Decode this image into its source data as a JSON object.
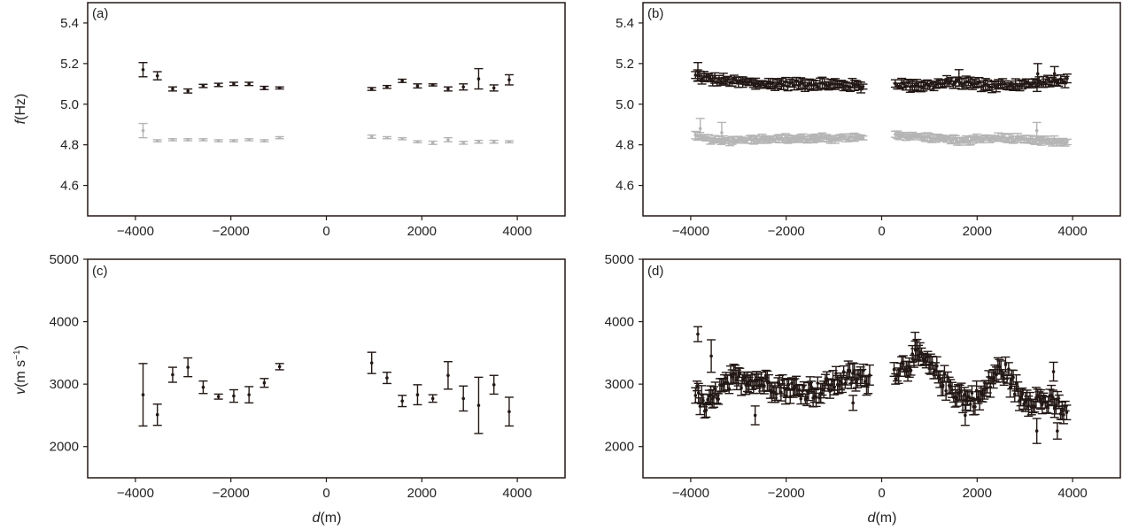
{
  "chart_data": [
    {
      "panel": "(a)",
      "type": "scatter",
      "ylabel": {
        "symbol": "f",
        "unit": "(Hz)"
      },
      "xlabel": "",
      "xlim": [
        -5000,
        5000
      ],
      "ylim": [
        4.45,
        5.5
      ],
      "xticks": [
        -4000,
        -2000,
        0,
        2000,
        4000
      ],
      "xtick_labels": [
        "−4000",
        "−2000",
        "0",
        "2000",
        "4000"
      ],
      "yticks": [
        4.6,
        4.8,
        5.0,
        5.2,
        5.4
      ],
      "ytick_labels": [
        "4.6",
        "4.8",
        "5.0",
        "5.2",
        "5.4"
      ],
      "error_bars": true,
      "series": [
        {
          "color": "#231815",
          "points": [
            {
              "x": -3840,
              "y": 5.17,
              "err": 0.035
            },
            {
              "x": -3540,
              "y": 5.14,
              "err": 0.02
            },
            {
              "x": -3220,
              "y": 5.075,
              "err": 0.01
            },
            {
              "x": -2900,
              "y": 5.065,
              "err": 0.01
            },
            {
              "x": -2580,
              "y": 5.09,
              "err": 0.008
            },
            {
              "x": -2260,
              "y": 5.095,
              "err": 0.008
            },
            {
              "x": -1940,
              "y": 5.1,
              "err": 0.008
            },
            {
              "x": -1620,
              "y": 5.1,
              "err": 0.008
            },
            {
              "x": -1300,
              "y": 5.08,
              "err": 0.008
            },
            {
              "x": -980,
              "y": 5.08,
              "err": 0.005
            },
            {
              "x": 950,
              "y": 5.075,
              "err": 0.007
            },
            {
              "x": 1270,
              "y": 5.085,
              "err": 0.007
            },
            {
              "x": 1590,
              "y": 5.115,
              "err": 0.008
            },
            {
              "x": 1910,
              "y": 5.09,
              "err": 0.01
            },
            {
              "x": 2230,
              "y": 5.095,
              "err": 0.005
            },
            {
              "x": 2550,
              "y": 5.075,
              "err": 0.01
            },
            {
              "x": 2870,
              "y": 5.085,
              "err": 0.015
            },
            {
              "x": 3190,
              "y": 5.125,
              "err": 0.05
            },
            {
              "x": 3510,
              "y": 5.08,
              "err": 0.015
            },
            {
              "x": 3830,
              "y": 5.12,
              "err": 0.025
            }
          ]
        },
        {
          "color": "#b5b5b5",
          "points": [
            {
              "x": -3840,
              "y": 4.87,
              "err": 0.035
            },
            {
              "x": -3540,
              "y": 4.82,
              "err": 0.005
            },
            {
              "x": -3220,
              "y": 4.825,
              "err": 0.005
            },
            {
              "x": -2900,
              "y": 4.825,
              "err": 0.005
            },
            {
              "x": -2580,
              "y": 4.825,
              "err": 0.005
            },
            {
              "x": -2260,
              "y": 4.82,
              "err": 0.005
            },
            {
              "x": -1940,
              "y": 4.82,
              "err": 0.005
            },
            {
              "x": -1620,
              "y": 4.825,
              "err": 0.005
            },
            {
              "x": -1300,
              "y": 4.82,
              "err": 0.005
            },
            {
              "x": -980,
              "y": 4.835,
              "err": 0.005
            },
            {
              "x": 950,
              "y": 4.84,
              "err": 0.008
            },
            {
              "x": 1270,
              "y": 4.835,
              "err": 0.005
            },
            {
              "x": 1590,
              "y": 4.83,
              "err": 0.005
            },
            {
              "x": 1910,
              "y": 4.815,
              "err": 0.005
            },
            {
              "x": 2230,
              "y": 4.81,
              "err": 0.008
            },
            {
              "x": 2550,
              "y": 4.825,
              "err": 0.01
            },
            {
              "x": 2870,
              "y": 4.81,
              "err": 0.007
            },
            {
              "x": 3190,
              "y": 4.815,
              "err": 0.007
            },
            {
              "x": 3510,
              "y": 4.815,
              "err": 0.007
            },
            {
              "x": 3830,
              "y": 4.815,
              "err": 0.005
            }
          ]
        }
      ]
    },
    {
      "panel": "(b)",
      "type": "scatter",
      "xlabel": "",
      "ylabel": "",
      "xlim": [
        -5000,
        5000
      ],
      "ylim": [
        4.45,
        5.5
      ],
      "xticks": [
        -4000,
        -2000,
        0,
        2000,
        4000
      ],
      "xtick_labels": [
        "−4000",
        "−2000",
        "0",
        "2000",
        "4000"
      ],
      "yticks": [
        4.6,
        4.8,
        5.0,
        5.2,
        5.4
      ],
      "ytick_labels": [
        "4.6",
        "4.8",
        "5.0",
        "5.2",
        "5.4"
      ],
      "error_bars": true,
      "series": [
        {
          "color": "#231815",
          "x_range": [
            -3900,
            3900
          ],
          "gap": [
            -350,
            250
          ],
          "step": 45,
          "profile": [
            [
              -3900,
              5.14
            ],
            [
              -3500,
              5.12
            ],
            [
              -2500,
              5.1
            ],
            [
              -1500,
              5.1
            ],
            [
              -350,
              5.09
            ],
            [
              250,
              5.1
            ],
            [
              900,
              5.09
            ],
            [
              1600,
              5.11
            ],
            [
              2300,
              5.09
            ],
            [
              3200,
              5.1
            ],
            [
              3900,
              5.12
            ]
          ],
          "noise": 0.012,
          "err": 0.02,
          "spikes": [
            {
              "x": -3850,
              "y": 5.16,
              "err": 0.045
            },
            {
              "x": 1620,
              "y": 5.13,
              "err": 0.04
            },
            {
              "x": 3270,
              "y": 5.15,
              "err": 0.05
            },
            {
              "x": 3620,
              "y": 5.15,
              "err": 0.035
            }
          ]
        },
        {
          "color": "#b5b5b5",
          "x_range": [
            -3900,
            3900
          ],
          "gap": [
            -350,
            250
          ],
          "step": 45,
          "profile": [
            [
              -3900,
              4.84
            ],
            [
              -3400,
              4.82
            ],
            [
              -2500,
              4.83
            ],
            [
              -1500,
              4.83
            ],
            [
              -350,
              4.835
            ],
            [
              250,
              4.845
            ],
            [
              900,
              4.84
            ],
            [
              1700,
              4.82
            ],
            [
              2500,
              4.835
            ],
            [
              3200,
              4.82
            ],
            [
              3900,
              4.815
            ]
          ],
          "noise": 0.008,
          "err": 0.015,
          "spikes": [
            {
              "x": -3800,
              "y": 4.88,
              "err": 0.05
            },
            {
              "x": -3350,
              "y": 4.86,
              "err": 0.05
            },
            {
              "x": 3250,
              "y": 4.87,
              "err": 0.04
            }
          ]
        }
      ]
    },
    {
      "panel": "(c)",
      "type": "scatter",
      "xlabel": {
        "symbol": "d",
        "unit": "(m)"
      },
      "ylabel": {
        "symbol": "v",
        "unit": "(m s",
        "sup": "−1",
        "close": ")"
      },
      "xlim": [
        -5000,
        5000
      ],
      "ylim": [
        1500,
        5000
      ],
      "xticks": [
        -4000,
        -2000,
        0,
        2000,
        4000
      ],
      "xtick_labels": [
        "−4000",
        "−2000",
        "0",
        "2000",
        "4000"
      ],
      "yticks": [
        2000,
        3000,
        4000,
        5000
      ],
      "ytick_labels": [
        "2000",
        "3000",
        "4000",
        "5000"
      ],
      "error_bars": true,
      "series": [
        {
          "color": "#231815",
          "points": [
            {
              "x": -3840,
              "y": 2830,
              "err": 500
            },
            {
              "x": -3540,
              "y": 2510,
              "err": 170
            },
            {
              "x": -3220,
              "y": 3150,
              "err": 120
            },
            {
              "x": -2900,
              "y": 3270,
              "err": 150
            },
            {
              "x": -2580,
              "y": 2950,
              "err": 100
            },
            {
              "x": -2260,
              "y": 2800,
              "err": 40
            },
            {
              "x": -1940,
              "y": 2810,
              "err": 100
            },
            {
              "x": -1620,
              "y": 2830,
              "err": 130
            },
            {
              "x": -1300,
              "y": 3020,
              "err": 70
            },
            {
              "x": -980,
              "y": 3280,
              "err": 50
            },
            {
              "x": 950,
              "y": 3340,
              "err": 170
            },
            {
              "x": 1270,
              "y": 3100,
              "err": 90
            },
            {
              "x": 1590,
              "y": 2730,
              "err": 90
            },
            {
              "x": 1910,
              "y": 2830,
              "err": 160
            },
            {
              "x": 2230,
              "y": 2770,
              "err": 60
            },
            {
              "x": 2550,
              "y": 3140,
              "err": 220
            },
            {
              "x": 2870,
              "y": 2770,
              "err": 200
            },
            {
              "x": 3190,
              "y": 2660,
              "err": 450
            },
            {
              "x": 3510,
              "y": 2990,
              "err": 150
            },
            {
              "x": 3830,
              "y": 2560,
              "err": 230
            }
          ]
        }
      ]
    },
    {
      "panel": "(d)",
      "type": "scatter",
      "xlabel": {
        "symbol": "d",
        "unit": "(m)"
      },
      "ylabel": "",
      "xlim": [
        -5000,
        5000
      ],
      "ylim": [
        1500,
        5000
      ],
      "xticks": [
        -4000,
        -2000,
        0,
        2000,
        4000
      ],
      "xtick_labels": [
        "−4000",
        "−2000",
        "0",
        "2000",
        "4000"
      ],
      "yticks": [
        2000,
        3000,
        4000,
        5000
      ],
      "ytick_labels": [
        "2000",
        "3000",
        "4000",
        "5000"
      ],
      "error_bars": true,
      "series": [
        {
          "color": "#231815",
          "x_range": [
            -3900,
            3900
          ],
          "gap": [
            -250,
            250
          ],
          "step": 32,
          "profile": [
            [
              -3900,
              2900
            ],
            [
              -3700,
              2600
            ],
            [
              -3400,
              2900
            ],
            [
              -3100,
              3050
            ],
            [
              -2800,
              3100
            ],
            [
              -2300,
              3000
            ],
            [
              -1800,
              2900
            ],
            [
              -1300,
              2900
            ],
            [
              -800,
              3100
            ],
            [
              -250,
              3100
            ],
            [
              250,
              3200
            ],
            [
              500,
              3300
            ],
            [
              800,
              3450
            ],
            [
              1100,
              3200
            ],
            [
              1500,
              2900
            ],
            [
              1800,
              2750
            ],
            [
              2100,
              2800
            ],
            [
              2400,
              3200
            ],
            [
              2600,
              3200
            ],
            [
              2900,
              2800
            ],
            [
              3300,
              2750
            ],
            [
              3700,
              2650
            ],
            [
              3900,
              2500
            ]
          ],
          "noise": 140,
          "err": 120,
          "spikes": [
            {
              "x": -3850,
              "y": 3800,
              "err": 120
            },
            {
              "x": -3570,
              "y": 3450,
              "err": 260
            },
            {
              "x": -2650,
              "y": 2500,
              "err": 150
            },
            {
              "x": -600,
              "y": 2700,
              "err": 120
            },
            {
              "x": 700,
              "y": 3700,
              "err": 130
            },
            {
              "x": 1750,
              "y": 2500,
              "err": 160
            },
            {
              "x": 3250,
              "y": 2250,
              "err": 200
            },
            {
              "x": 3680,
              "y": 2250,
              "err": 130
            },
            {
              "x": 3600,
              "y": 3200,
              "err": 150
            }
          ]
        }
      ]
    }
  ]
}
